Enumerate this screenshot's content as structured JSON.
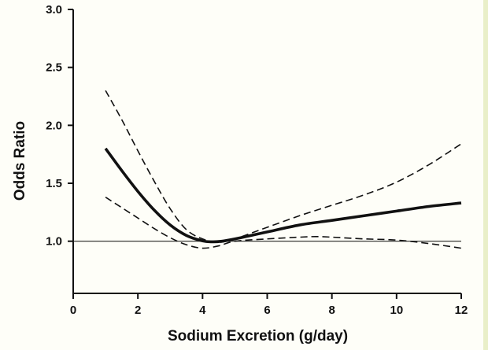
{
  "chart_data": {
    "type": "line",
    "title": "",
    "xlabel": "Sodium Excretion (g/day)",
    "ylabel": "Odds Ratio",
    "xlim": [
      0,
      12
    ],
    "ylim": [
      0.55,
      3.0
    ],
    "xticks": [
      0,
      2,
      4,
      6,
      8,
      10,
      12
    ],
    "xtick_labels": [
      "0",
      "2",
      "4",
      "6",
      "8",
      "10",
      "12"
    ],
    "yticks": [
      1.0,
      1.5,
      2.0,
      2.5,
      3.0
    ],
    "ytick_labels": [
      "1.0",
      "1.5",
      "2.0",
      "2.5",
      "3.0"
    ],
    "grid": false,
    "legend": "none",
    "reference_line": {
      "y": 1.0,
      "x_range": [
        0,
        12
      ]
    },
    "series": [
      {
        "role": "estimate",
        "style": "solid",
        "x": [
          1.0,
          1.5,
          2.0,
          2.5,
          3.0,
          3.5,
          4.0,
          4.3,
          4.6,
          5.0,
          5.5,
          6.0,
          7.0,
          8.0,
          9.0,
          10.0,
          11.0,
          12.0
        ],
        "y": [
          1.8,
          1.61,
          1.43,
          1.27,
          1.14,
          1.05,
          1.003,
          0.995,
          1.0,
          1.02,
          1.05,
          1.08,
          1.14,
          1.18,
          1.22,
          1.26,
          1.3,
          1.33
        ]
      },
      {
        "role": "upper-ci",
        "style": "dashed",
        "x": [
          1.0,
          1.5,
          2.0,
          2.5,
          3.0,
          3.5,
          4.0,
          4.5,
          5.0,
          5.5,
          6.0,
          7.0,
          8.0,
          9.0,
          10.0,
          11.0,
          12.0
        ],
        "y": [
          2.3,
          2.05,
          1.78,
          1.52,
          1.28,
          1.1,
          1.02,
          0.99,
          1.02,
          1.07,
          1.12,
          1.22,
          1.31,
          1.4,
          1.51,
          1.66,
          1.84
        ]
      },
      {
        "role": "lower-ci",
        "style": "dashed",
        "x": [
          1.0,
          1.5,
          2.0,
          2.5,
          3.0,
          3.5,
          4.0,
          4.5,
          5.0,
          6.0,
          7.0,
          7.5,
          8.0,
          9.0,
          10.0,
          11.0,
          12.0
        ],
        "y": [
          1.38,
          1.29,
          1.2,
          1.11,
          1.03,
          0.97,
          0.94,
          0.96,
          1.0,
          1.02,
          1.035,
          1.04,
          1.035,
          1.02,
          1.01,
          0.98,
          0.94
        ]
      }
    ]
  }
}
